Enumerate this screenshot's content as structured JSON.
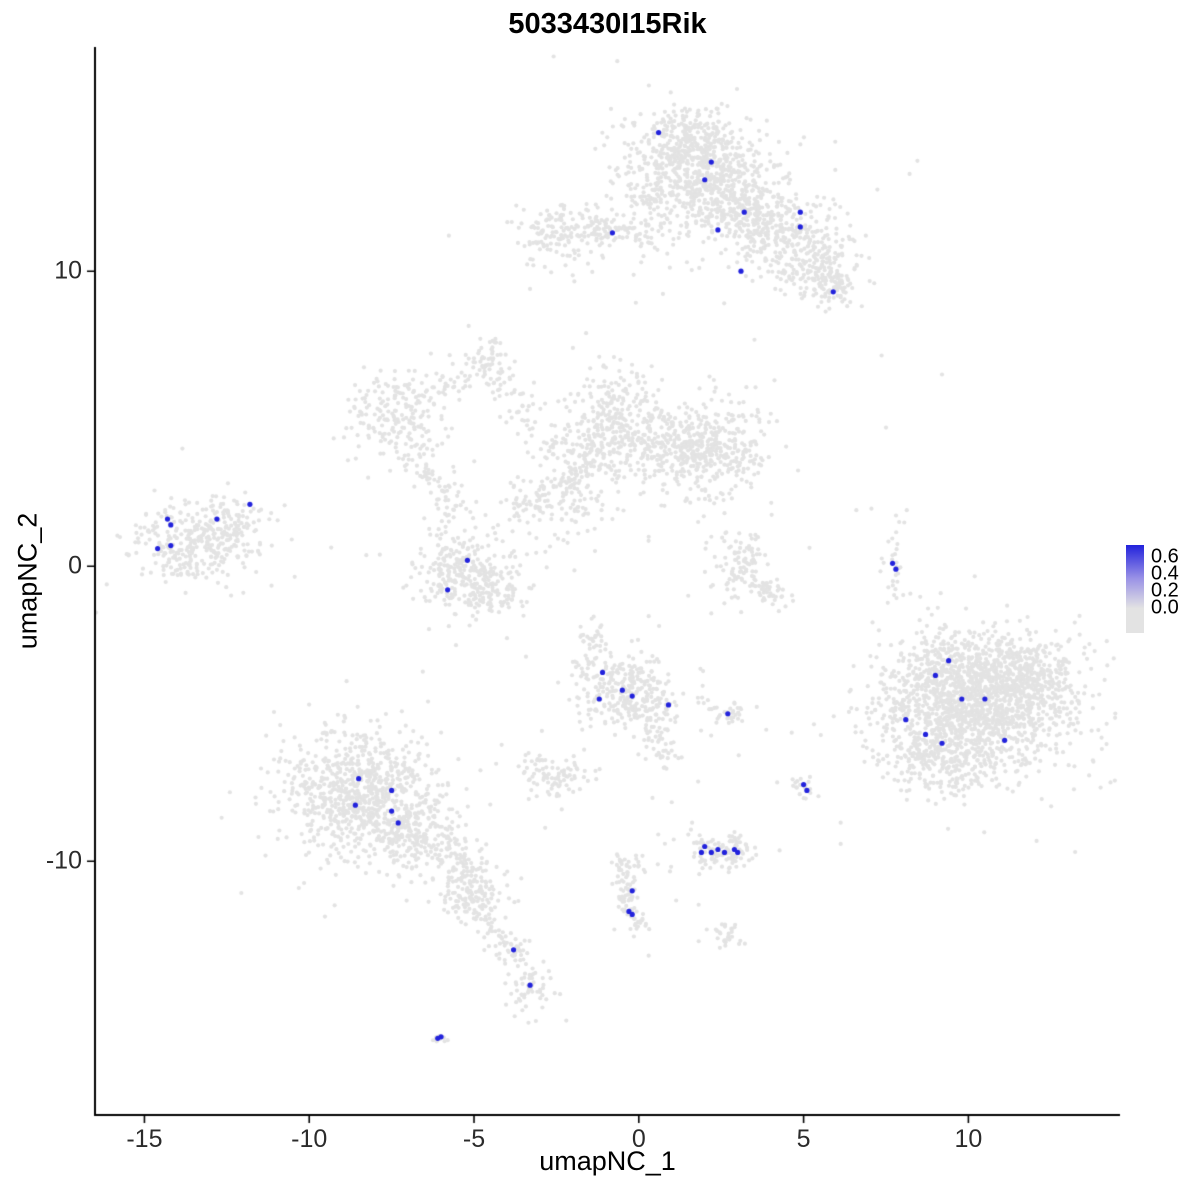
{
  "chart_data": {
    "type": "scatter",
    "title": "5033430I15Rik",
    "xlabel": "umapNC_1",
    "ylabel": "umapNC_2",
    "xlim": [
      -16.5,
      14.6
    ],
    "ylim": [
      -18.6,
      17.6
    ],
    "x_ticks": [
      -15,
      -10,
      -5,
      0,
      5,
      10
    ],
    "y_ticks": [
      -10,
      0,
      10
    ],
    "grid": false,
    "legend_position": "right",
    "colors": {
      "low": "#E3E3E3",
      "high": "#2222DC",
      "legend_mid": "#9A92E6",
      "axis": "#000000"
    },
    "legend": {
      "tick_labels": [
        "0.6",
        "0.4",
        "0.2",
        "0.0"
      ]
    },
    "gray_clusters": [
      [
        1.55,
        13.8,
        1.05,
        0.75,
        420
      ],
      [
        2.3,
        12.9,
        0.9,
        0.7,
        300
      ],
      [
        1.6,
        14.6,
        0.6,
        0.4,
        120
      ],
      [
        3.3,
        11.9,
        0.8,
        0.6,
        220
      ],
      [
        4.6,
        11.0,
        0.8,
        0.7,
        220
      ],
      [
        5.5,
        10.0,
        0.6,
        0.6,
        130
      ],
      [
        5.9,
        9.4,
        0.4,
        0.4,
        60
      ],
      [
        0.3,
        11.9,
        0.35,
        0.8,
        80
      ],
      [
        -2.2,
        11.3,
        0.75,
        0.45,
        160
      ],
      [
        -0.7,
        4.8,
        0.75,
        0.95,
        330
      ],
      [
        1.25,
        4.0,
        0.9,
        0.75,
        300
      ],
      [
        2.5,
        4.0,
        0.7,
        0.8,
        220
      ],
      [
        -5.2,
        -0.1,
        0.85,
        0.75,
        300
      ],
      [
        -4.4,
        -1.0,
        0.45,
        0.35,
        70
      ],
      [
        -7.3,
        5.1,
        0.75,
        0.75,
        200
      ],
      [
        -4.5,
        7.1,
        0.3,
        0.35,
        45
      ],
      [
        -13.5,
        0.8,
        0.95,
        0.7,
        330
      ],
      [
        -12.3,
        1.5,
        0.5,
        0.45,
        60
      ],
      [
        3.1,
        0.1,
        0.45,
        0.55,
        90
      ],
      [
        7.75,
        -0.1,
        0.18,
        0.55,
        30
      ],
      [
        -0.3,
        -4.2,
        0.75,
        0.65,
        300
      ],
      [
        -2.5,
        -7.1,
        0.5,
        0.38,
        90
      ],
      [
        2.7,
        -5.0,
        0.3,
        0.2,
        35
      ],
      [
        5.0,
        -7.5,
        0.22,
        0.25,
        18
      ],
      [
        10.3,
        -4.7,
        1.45,
        1.1,
        1500
      ],
      [
        9.1,
        -6.5,
        0.8,
        0.65,
        250
      ],
      [
        11.7,
        -3.5,
        0.7,
        0.55,
        200
      ],
      [
        9.3,
        -3.2,
        0.6,
        0.5,
        150
      ],
      [
        -8.5,
        -7.7,
        1.15,
        1.0,
        800
      ],
      [
        -7.0,
        -9.0,
        0.7,
        0.6,
        200
      ],
      [
        -5.0,
        -11.3,
        0.4,
        0.4,
        80
      ],
      [
        -3.8,
        -13.1,
        0.22,
        0.25,
        30
      ],
      [
        -3.4,
        -14.3,
        0.3,
        0.4,
        60
      ],
      [
        -6.05,
        -16.0,
        0.15,
        0.12,
        12
      ],
      [
        2.5,
        -9.6,
        0.55,
        0.35,
        120
      ],
      [
        -0.35,
        -10.3,
        0.3,
        0.3,
        45
      ],
      [
        0.0,
        -12.2,
        0.15,
        0.15,
        12
      ],
      [
        2.7,
        -12.5,
        0.3,
        0.25,
        30
      ]
    ],
    "gray_segments": [
      [
        -1.6,
        11.3,
        0.0,
        11.5,
        0.25,
        50
      ],
      [
        -1.4,
        3.5,
        -3.7,
        1.7,
        0.35,
        130
      ],
      [
        -6.8,
        3.9,
        -5.2,
        1.6,
        0.3,
        70
      ],
      [
        -6.3,
        5.8,
        -4.7,
        6.8,
        0.25,
        40
      ],
      [
        -4.4,
        6.6,
        -3.2,
        4.6,
        0.3,
        50
      ],
      [
        -3.1,
        4.2,
        -1.7,
        3.8,
        0.3,
        40
      ],
      [
        3.3,
        -0.5,
        4.5,
        -1.2,
        0.22,
        45
      ],
      [
        -1.6,
        2.8,
        -2.2,
        0.8,
        0.3,
        35
      ],
      [
        -1.4,
        -2.0,
        -1.6,
        -3.4,
        0.2,
        40
      ],
      [
        0.2,
        -5.0,
        0.8,
        -6.6,
        0.25,
        60
      ],
      [
        -6.3,
        -9.0,
        -4.6,
        -11.2,
        0.45,
        160
      ],
      [
        -4.8,
        -11.8,
        -4.0,
        -12.9,
        0.2,
        35
      ],
      [
        -0.4,
        -10.8,
        -0.1,
        -12.0,
        0.18,
        45
      ]
    ],
    "gray_singles": [
      [
        7.5,
        4.7
      ],
      [
        9.2,
        6.5
      ],
      [
        2.6,
        1.8
      ],
      [
        1.8,
        1.5
      ],
      [
        2.2,
        1.0
      ],
      [
        -2.0,
        7.4
      ],
      [
        -1.6,
        7.9
      ],
      [
        -1.2,
        7.1
      ],
      [
        -3.2,
        10.2
      ],
      [
        -3.3,
        9.4
      ],
      [
        -11.5,
        0.4
      ],
      [
        -12.0,
        -0.9
      ],
      [
        1.5,
        -1.0
      ],
      [
        2.2,
        -1.6
      ],
      [
        -0.8,
        1.6
      ],
      [
        0.3,
        1.0
      ],
      [
        6.6,
        1.9
      ],
      [
        1.0,
        -8.0
      ],
      [
        1.8,
        -7.3
      ],
      [
        -2.2,
        -15.4
      ],
      [
        0.3,
        -13.2
      ],
      [
        7.9,
        1.5
      ]
    ],
    "expressing_points": [
      [
        0.6,
        14.7
      ],
      [
        2.2,
        13.7
      ],
      [
        2.0,
        13.1
      ],
      [
        3.2,
        12.0
      ],
      [
        2.4,
        11.4
      ],
      [
        4.9,
        12.0
      ],
      [
        4.9,
        11.5
      ],
      [
        3.1,
        10.0
      ],
      [
        5.9,
        9.3
      ],
      [
        -0.8,
        11.3
      ],
      [
        -14.3,
        1.6
      ],
      [
        -14.2,
        1.4
      ],
      [
        -14.6,
        0.6
      ],
      [
        -14.2,
        0.7
      ],
      [
        -12.8,
        1.6
      ],
      [
        -11.8,
        2.1
      ],
      [
        -5.2,
        0.2
      ],
      [
        -5.8,
        -0.8
      ],
      [
        7.7,
        0.1
      ],
      [
        7.8,
        -0.1
      ],
      [
        -1.1,
        -3.6
      ],
      [
        -1.2,
        -4.5
      ],
      [
        -0.5,
        -4.2
      ],
      [
        -0.2,
        -4.4
      ],
      [
        0.9,
        -4.7
      ],
      [
        2.7,
        -5.0
      ],
      [
        9.4,
        -3.2
      ],
      [
        9.0,
        -3.7
      ],
      [
        9.8,
        -4.5
      ],
      [
        10.5,
        -4.5
      ],
      [
        8.1,
        -5.2
      ],
      [
        8.7,
        -5.7
      ],
      [
        9.2,
        -6.0
      ],
      [
        11.1,
        -5.9
      ],
      [
        5.0,
        -7.4
      ],
      [
        5.1,
        -7.6
      ],
      [
        -8.5,
        -7.2
      ],
      [
        -7.5,
        -7.6
      ],
      [
        -8.6,
        -8.1
      ],
      [
        -7.5,
        -8.3
      ],
      [
        -7.3,
        -8.7
      ],
      [
        2.0,
        -9.5
      ],
      [
        1.9,
        -9.7
      ],
      [
        2.2,
        -9.7
      ],
      [
        2.4,
        -9.6
      ],
      [
        2.6,
        -9.7
      ],
      [
        2.9,
        -9.6
      ],
      [
        3.0,
        -9.7
      ],
      [
        -0.2,
        -11.0
      ],
      [
        -0.3,
        -11.7
      ],
      [
        -0.2,
        -11.8
      ],
      [
        -3.8,
        -13.0
      ],
      [
        -3.3,
        -14.2
      ],
      [
        -6.1,
        -16.0
      ],
      [
        -6.0,
        -15.95
      ]
    ]
  }
}
